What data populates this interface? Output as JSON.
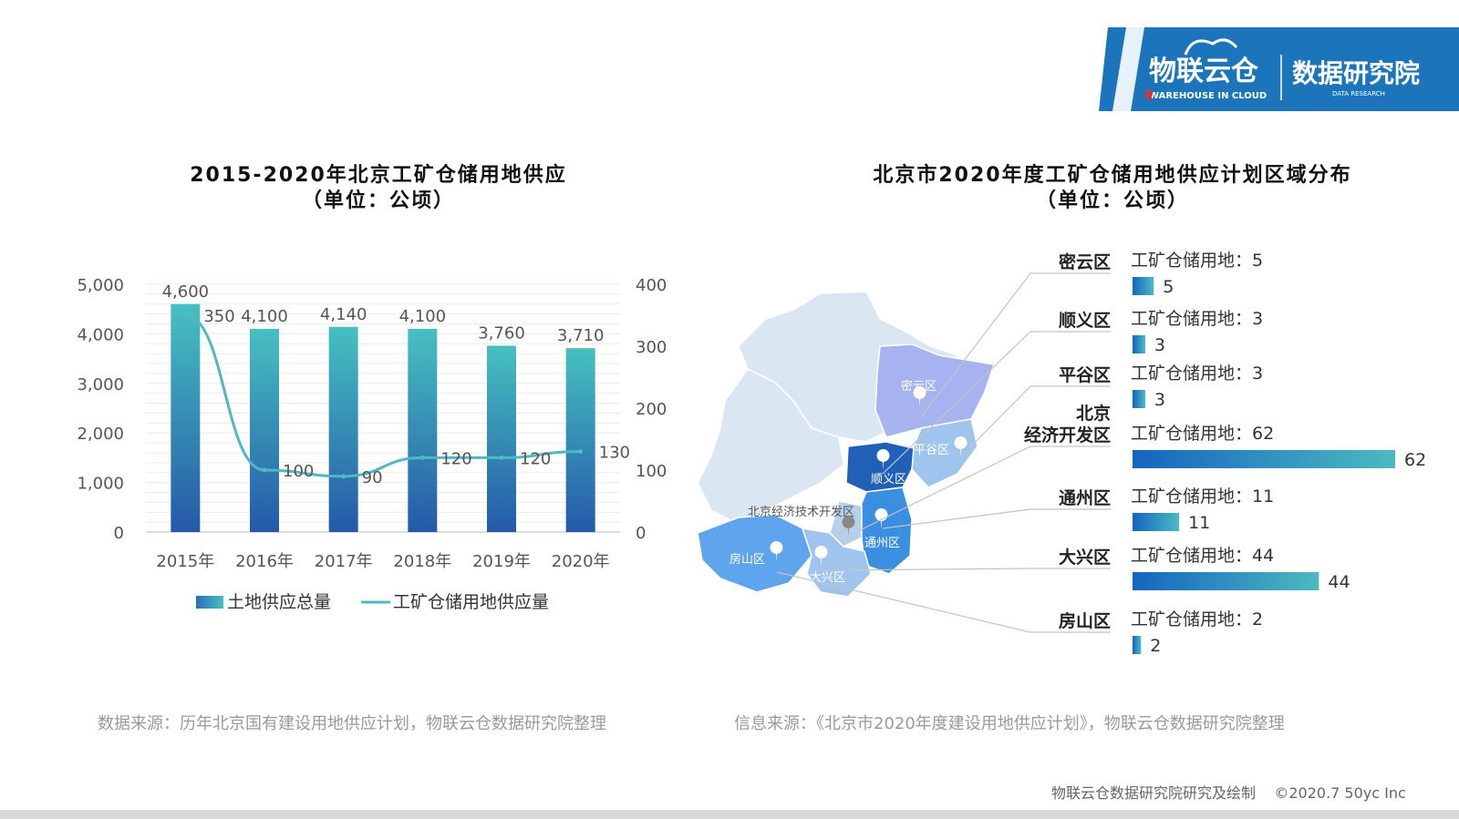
{
  "logo": {
    "cn_name": "物联云仓",
    "en_name": "WAREHOUSE IN CLOUD",
    "institute_cn": "数据研究院",
    "institute_en": "DATA RESEARCH",
    "colors": {
      "band": "#1c75bb",
      "accent": "#e23030"
    }
  },
  "left_chart": {
    "title": "2015-2020年北京工矿仓储用地供应",
    "subtitle": "（单位：公顷）",
    "legend": {
      "bar": "土地供应总量",
      "line": "工矿仓储用地供应量"
    },
    "source": "数据来源：历年北京国有建设用地供应计划，物联云仓数据研究院整理"
  },
  "right_chart": {
    "title": "北京市2020年度工矿仓储用地供应计划区域分布",
    "subtitle": "（单位：公顷）",
    "value_prefix": "工矿仓储用地：",
    "source": "信息来源：《北京市2020年度建设用地供应计划》，物联云仓数据研究院整理",
    "map": {
      "labels": [
        "密云区",
        "平谷区",
        "顺义区",
        "北京经济技术开发区",
        "通州区",
        "房山区",
        "大兴区"
      ],
      "colors": {
        "light": "#dbe6f3",
        "mid": "#9fc4ee",
        "purple": "#a6b3f0",
        "dark": "#2160b7",
        "bright": "#3a8fe0"
      }
    }
  },
  "chart_data": [
    {
      "type": "bar",
      "categories": [
        "2015年",
        "2016年",
        "2017年",
        "2018年",
        "2019年",
        "2020年"
      ],
      "series": [
        {
          "name": "土地供应总量",
          "values": [
            4600,
            4100,
            4140,
            4100,
            3760,
            3710
          ],
          "labels": [
            "4,600",
            "4,100",
            "4,140",
            "4,100",
            "3,760",
            "3,710"
          ],
          "axis": "left",
          "kind": "bar",
          "color": "#3aa7b8"
        },
        {
          "name": "工矿仓储用地供应量",
          "values": [
            350,
            100,
            90,
            120,
            120,
            130
          ],
          "labels": [
            "350",
            "100",
            "90",
            "120",
            "120",
            "130"
          ],
          "axis": "right",
          "kind": "line",
          "color": "#4fb8c2"
        }
      ],
      "y_left": {
        "ylim": [
          0,
          5000
        ],
        "ticks": [
          "0",
          "1,000",
          "2,000",
          "3,000",
          "4,000",
          "5,000"
        ],
        "tick_values": [
          0,
          1000,
          2000,
          3000,
          4000,
          5000
        ]
      },
      "y_right": {
        "ylim": [
          0,
          400
        ],
        "ticks": [
          "0",
          "100",
          "200",
          "300",
          "400"
        ],
        "tick_values": [
          0,
          100,
          200,
          300,
          400
        ]
      },
      "grid": true,
      "legend_position": "bottom"
    },
    {
      "type": "bar",
      "orientation": "horizontal",
      "categories": [
        "密云区",
        "顺义区",
        "平谷区",
        "北京\n经济开发区",
        "通州区",
        "大兴区",
        "房山区"
      ],
      "category_lines": [
        [
          "密云区"
        ],
        [
          "顺义区"
        ],
        [
          "平谷区"
        ],
        [
          "北京",
          "经济开发区"
        ],
        [
          "通州区"
        ],
        [
          "大兴区"
        ],
        [
          "房山区"
        ]
      ],
      "values": [
        5,
        3,
        3,
        62,
        11,
        44,
        2
      ],
      "xlim": [
        0,
        62
      ]
    }
  ]
}
